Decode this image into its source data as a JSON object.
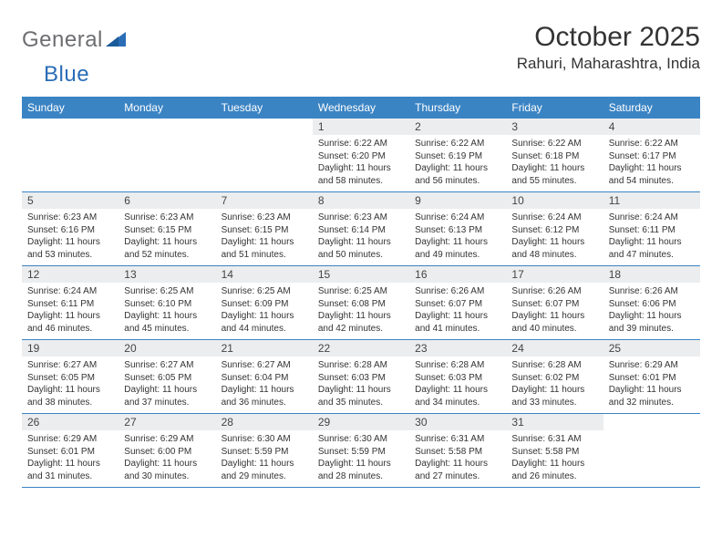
{
  "logo": {
    "general": "General",
    "blue": "Blue"
  },
  "title": "October 2025",
  "location": "Rahuri, Maharashtra, India",
  "colors": {
    "header_bg": "#3b84c4",
    "header_text": "#ffffff",
    "daynum_bg": "#ecedee",
    "rule": "#3b84c4",
    "logo_gray": "#6d6e71",
    "logo_blue": "#2a6db6"
  },
  "weekdays": [
    "Sunday",
    "Monday",
    "Tuesday",
    "Wednesday",
    "Thursday",
    "Friday",
    "Saturday"
  ],
  "weeks": [
    [
      {
        "empty": true
      },
      {
        "empty": true
      },
      {
        "empty": true
      },
      {
        "day": "1",
        "sunrise": "Sunrise: 6:22 AM",
        "sunset": "Sunset: 6:20 PM",
        "daylight": "Daylight: 11 hours and 58 minutes."
      },
      {
        "day": "2",
        "sunrise": "Sunrise: 6:22 AM",
        "sunset": "Sunset: 6:19 PM",
        "daylight": "Daylight: 11 hours and 56 minutes."
      },
      {
        "day": "3",
        "sunrise": "Sunrise: 6:22 AM",
        "sunset": "Sunset: 6:18 PM",
        "daylight": "Daylight: 11 hours and 55 minutes."
      },
      {
        "day": "4",
        "sunrise": "Sunrise: 6:22 AM",
        "sunset": "Sunset: 6:17 PM",
        "daylight": "Daylight: 11 hours and 54 minutes."
      }
    ],
    [
      {
        "day": "5",
        "sunrise": "Sunrise: 6:23 AM",
        "sunset": "Sunset: 6:16 PM",
        "daylight": "Daylight: 11 hours and 53 minutes."
      },
      {
        "day": "6",
        "sunrise": "Sunrise: 6:23 AM",
        "sunset": "Sunset: 6:15 PM",
        "daylight": "Daylight: 11 hours and 52 minutes."
      },
      {
        "day": "7",
        "sunrise": "Sunrise: 6:23 AM",
        "sunset": "Sunset: 6:15 PM",
        "daylight": "Daylight: 11 hours and 51 minutes."
      },
      {
        "day": "8",
        "sunrise": "Sunrise: 6:23 AM",
        "sunset": "Sunset: 6:14 PM",
        "daylight": "Daylight: 11 hours and 50 minutes."
      },
      {
        "day": "9",
        "sunrise": "Sunrise: 6:24 AM",
        "sunset": "Sunset: 6:13 PM",
        "daylight": "Daylight: 11 hours and 49 minutes."
      },
      {
        "day": "10",
        "sunrise": "Sunrise: 6:24 AM",
        "sunset": "Sunset: 6:12 PM",
        "daylight": "Daylight: 11 hours and 48 minutes."
      },
      {
        "day": "11",
        "sunrise": "Sunrise: 6:24 AM",
        "sunset": "Sunset: 6:11 PM",
        "daylight": "Daylight: 11 hours and 47 minutes."
      }
    ],
    [
      {
        "day": "12",
        "sunrise": "Sunrise: 6:24 AM",
        "sunset": "Sunset: 6:11 PM",
        "daylight": "Daylight: 11 hours and 46 minutes."
      },
      {
        "day": "13",
        "sunrise": "Sunrise: 6:25 AM",
        "sunset": "Sunset: 6:10 PM",
        "daylight": "Daylight: 11 hours and 45 minutes."
      },
      {
        "day": "14",
        "sunrise": "Sunrise: 6:25 AM",
        "sunset": "Sunset: 6:09 PM",
        "daylight": "Daylight: 11 hours and 44 minutes."
      },
      {
        "day": "15",
        "sunrise": "Sunrise: 6:25 AM",
        "sunset": "Sunset: 6:08 PM",
        "daylight": "Daylight: 11 hours and 42 minutes."
      },
      {
        "day": "16",
        "sunrise": "Sunrise: 6:26 AM",
        "sunset": "Sunset: 6:07 PM",
        "daylight": "Daylight: 11 hours and 41 minutes."
      },
      {
        "day": "17",
        "sunrise": "Sunrise: 6:26 AM",
        "sunset": "Sunset: 6:07 PM",
        "daylight": "Daylight: 11 hours and 40 minutes."
      },
      {
        "day": "18",
        "sunrise": "Sunrise: 6:26 AM",
        "sunset": "Sunset: 6:06 PM",
        "daylight": "Daylight: 11 hours and 39 minutes."
      }
    ],
    [
      {
        "day": "19",
        "sunrise": "Sunrise: 6:27 AM",
        "sunset": "Sunset: 6:05 PM",
        "daylight": "Daylight: 11 hours and 38 minutes."
      },
      {
        "day": "20",
        "sunrise": "Sunrise: 6:27 AM",
        "sunset": "Sunset: 6:05 PM",
        "daylight": "Daylight: 11 hours and 37 minutes."
      },
      {
        "day": "21",
        "sunrise": "Sunrise: 6:27 AM",
        "sunset": "Sunset: 6:04 PM",
        "daylight": "Daylight: 11 hours and 36 minutes."
      },
      {
        "day": "22",
        "sunrise": "Sunrise: 6:28 AM",
        "sunset": "Sunset: 6:03 PM",
        "daylight": "Daylight: 11 hours and 35 minutes."
      },
      {
        "day": "23",
        "sunrise": "Sunrise: 6:28 AM",
        "sunset": "Sunset: 6:03 PM",
        "daylight": "Daylight: 11 hours and 34 minutes."
      },
      {
        "day": "24",
        "sunrise": "Sunrise: 6:28 AM",
        "sunset": "Sunset: 6:02 PM",
        "daylight": "Daylight: 11 hours and 33 minutes."
      },
      {
        "day": "25",
        "sunrise": "Sunrise: 6:29 AM",
        "sunset": "Sunset: 6:01 PM",
        "daylight": "Daylight: 11 hours and 32 minutes."
      }
    ],
    [
      {
        "day": "26",
        "sunrise": "Sunrise: 6:29 AM",
        "sunset": "Sunset: 6:01 PM",
        "daylight": "Daylight: 11 hours and 31 minutes."
      },
      {
        "day": "27",
        "sunrise": "Sunrise: 6:29 AM",
        "sunset": "Sunset: 6:00 PM",
        "daylight": "Daylight: 11 hours and 30 minutes."
      },
      {
        "day": "28",
        "sunrise": "Sunrise: 6:30 AM",
        "sunset": "Sunset: 5:59 PM",
        "daylight": "Daylight: 11 hours and 29 minutes."
      },
      {
        "day": "29",
        "sunrise": "Sunrise: 6:30 AM",
        "sunset": "Sunset: 5:59 PM",
        "daylight": "Daylight: 11 hours and 28 minutes."
      },
      {
        "day": "30",
        "sunrise": "Sunrise: 6:31 AM",
        "sunset": "Sunset: 5:58 PM",
        "daylight": "Daylight: 11 hours and 27 minutes."
      },
      {
        "day": "31",
        "sunrise": "Sunrise: 6:31 AM",
        "sunset": "Sunset: 5:58 PM",
        "daylight": "Daylight: 11 hours and 26 minutes."
      },
      {
        "empty": true
      }
    ]
  ]
}
